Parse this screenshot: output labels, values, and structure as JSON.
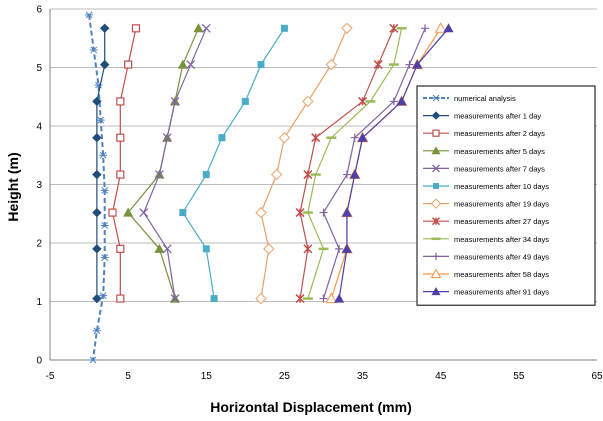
{
  "chart_data": {
    "type": "line",
    "xlabel": "Horizontal Displacement (mm)",
    "ylabel": "Height (m)",
    "xlim": [
      -5,
      65
    ],
    "ylim": [
      0,
      6
    ],
    "xticks": [
      "-5",
      "5",
      "15",
      "25",
      "35",
      "45",
      "55",
      "65"
    ],
    "yticks": [
      "0",
      "1",
      "2",
      "3",
      "4",
      "5",
      "6"
    ],
    "grid": "horizontal",
    "legend_position": "right",
    "series": [
      {
        "name": "numerical analysis",
        "color": "#4f81bd",
        "marker": "star",
        "dashed": true,
        "x": [
          0.0,
          0.6,
          1.2,
          1.5,
          1.8,
          2.0,
          2.0,
          2.0,
          1.8,
          1.0,
          0.5
        ],
        "y": [
          5.9,
          5.3,
          4.7,
          4.1,
          3.5,
          2.9,
          2.3,
          1.75,
          1.1,
          0.5,
          0.0
        ]
      },
      {
        "name": "measurements after 1 day",
        "color": "#1f4e79",
        "marker": "diamond",
        "x": [
          2.0,
          2.0,
          1.0,
          1.0,
          1.0,
          1.0,
          1.0,
          1.0
        ],
        "y": [
          5.67,
          5.05,
          4.42,
          3.8,
          3.17,
          2.52,
          1.9,
          1.05
        ]
      },
      {
        "name": "measurements after 2 days",
        "color": "#c0504d",
        "marker": "square-open",
        "x": [
          6.0,
          5.0,
          4.0,
          4.0,
          4.0,
          3.0,
          4.0,
          4.0
        ],
        "y": [
          5.67,
          5.05,
          4.42,
          3.8,
          3.17,
          2.52,
          1.9,
          1.05
        ]
      },
      {
        "name": "measurements after 5 days",
        "color": "#77933c",
        "marker": "triangle",
        "x": [
          14.0,
          12.0,
          11.0,
          10.0,
          9.0,
          5.0,
          9.0,
          11.0
        ],
        "y": [
          5.67,
          5.05,
          4.42,
          3.8,
          3.17,
          2.52,
          1.9,
          1.05
        ]
      },
      {
        "name": "measurements after 7 days",
        "color": "#8064a2",
        "marker": "x",
        "x": [
          15.0,
          13.0,
          11.0,
          10.0,
          9.0,
          7.0,
          10.0,
          11.0
        ],
        "y": [
          5.67,
          5.05,
          4.42,
          3.8,
          3.17,
          2.52,
          1.9,
          1.05
        ]
      },
      {
        "name": "measurements after 10 days",
        "color": "#4bacc6",
        "marker": "square",
        "x": [
          25.0,
          22.0,
          20.0,
          17.0,
          15.0,
          12.0,
          15.0,
          16.0
        ],
        "y": [
          5.67,
          5.05,
          4.42,
          3.8,
          3.17,
          2.52,
          1.9,
          1.05
        ]
      },
      {
        "name": "measurements after 19 days",
        "color": "#e8a166",
        "marker": "diamond-open",
        "x": [
          33.0,
          31.0,
          28.0,
          25.0,
          24.0,
          22.0,
          23.0,
          22.0
        ],
        "y": [
          5.67,
          5.05,
          4.42,
          3.8,
          3.17,
          2.52,
          1.9,
          1.05
        ]
      },
      {
        "name": "measurements after 27 days",
        "color": "#c0504d",
        "marker": "asterisk",
        "x": [
          39.0,
          37.0,
          35.0,
          29.0,
          28.0,
          27.0,
          28.0,
          27.0
        ],
        "y": [
          5.67,
          5.05,
          4.42,
          3.8,
          3.17,
          2.52,
          1.9,
          1.05
        ]
      },
      {
        "name": "measurements after 34 days",
        "color": "#9bbb59",
        "marker": "dash",
        "x": [
          40.0,
          39.0,
          36.0,
          31.0,
          29.0,
          28.0,
          30.0,
          28.0
        ],
        "y": [
          5.67,
          5.05,
          4.42,
          3.8,
          3.17,
          2.52,
          1.9,
          1.05
        ]
      },
      {
        "name": "measurements after 49 days",
        "color": "#8064a2",
        "marker": "plus",
        "x": [
          43.0,
          41.0,
          39.0,
          34.0,
          33.0,
          30.0,
          32.0,
          30.0
        ],
        "y": [
          5.67,
          5.05,
          4.42,
          3.8,
          3.17,
          2.52,
          1.9,
          1.05
        ]
      },
      {
        "name": "measurements after 58 days",
        "color": "#f79646",
        "marker": "triangle-open",
        "x": [
          45.0,
          42.0,
          40.0,
          35.0,
          34.0,
          33.0,
          33.0,
          31.0
        ],
        "y": [
          5.67,
          5.05,
          4.42,
          3.8,
          3.17,
          2.52,
          1.9,
          1.05
        ]
      },
      {
        "name": "measurements after 91 days",
        "color": "#4f3fa8",
        "marker": "triangle",
        "x": [
          46.0,
          42.0,
          40.0,
          35.0,
          34.0,
          33.0,
          33.0,
          32.0
        ],
        "y": [
          5.67,
          5.05,
          4.42,
          3.8,
          3.17,
          2.52,
          1.9,
          1.05
        ]
      }
    ]
  }
}
